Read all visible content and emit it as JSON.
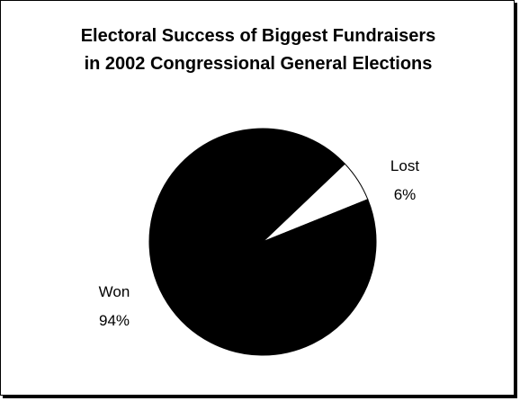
{
  "chart_data": {
    "type": "pie",
    "title": "Electoral Success of Biggest Fundraisers in 2002 Congressional General Elections",
    "title_lines": [
      "Electoral Success of Biggest Fundraisers",
      "in 2002 Congressional General Elections"
    ],
    "slices": [
      {
        "label": "Won",
        "value": 94,
        "value_label": "94%",
        "color": "#000000"
      },
      {
        "label": "Lost",
        "value": 6,
        "value_label": "6%",
        "color": "#ffffff"
      }
    ],
    "legend": "none"
  }
}
